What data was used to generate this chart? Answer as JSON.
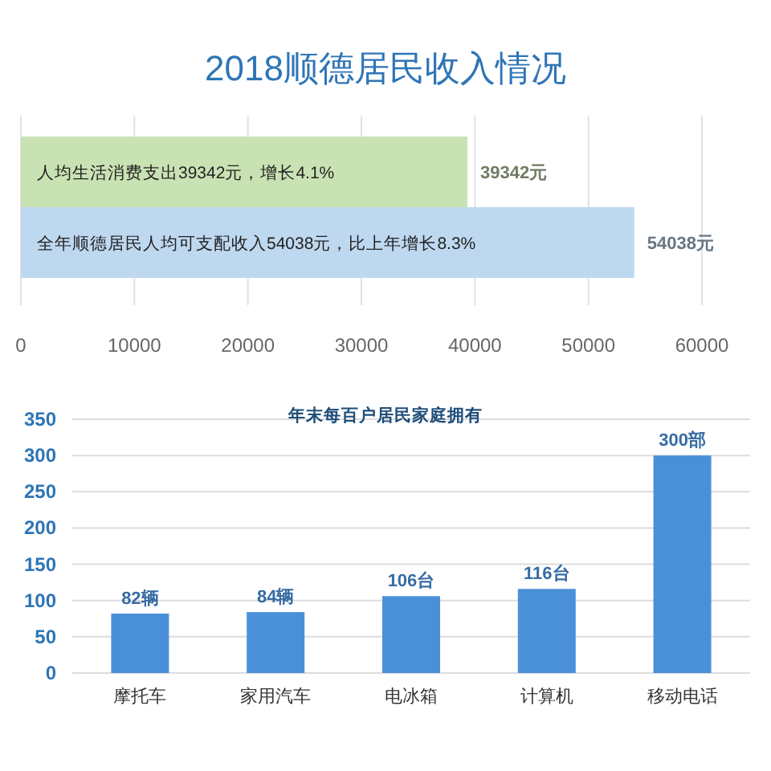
{
  "chart_data": [
    {
      "type": "bar",
      "orientation": "horizontal",
      "title": "2018顺德居民收入情况",
      "categories": [
        "人均生活消费支出39342元，增长4.1%",
        "全年顺德居民人均可支配收入54038元，比上年增长8.3%"
      ],
      "values": [
        39342,
        54038
      ],
      "colors": [
        "#c9e2b3",
        "#bed8f0"
      ],
      "value_labels": [
        "39342元",
        "54038元"
      ],
      "xlim": [
        0,
        60000
      ],
      "xticks": [
        0,
        10000,
        20000,
        30000,
        40000,
        50000,
        60000
      ],
      "grid": "x"
    },
    {
      "type": "bar",
      "title": "年末每百户居民家庭拥有",
      "categories": [
        "摩托车",
        "家用汽车",
        "电冰箱",
        "计算机",
        "移动电话"
      ],
      "values": [
        82,
        84,
        106,
        116,
        300
      ],
      "color": "#4a90d9",
      "value_labels": [
        "82辆",
        "84辆",
        "106台",
        "116台",
        "300部"
      ],
      "ylim": [
        0,
        350
      ],
      "yticks": [
        0,
        50,
        100,
        150,
        200,
        250,
        300,
        350
      ],
      "grid": "y"
    }
  ]
}
